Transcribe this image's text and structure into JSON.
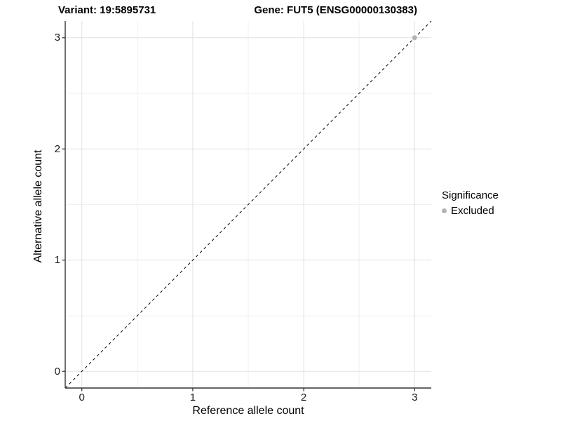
{
  "title": {
    "variant": "Variant: 19:5895731",
    "gene": "Gene: FUT5 (ENSG00000130383)"
  },
  "axes": {
    "x_label": "Reference allele count",
    "y_label": "Alternative allele count"
  },
  "legend": {
    "title": "Significance",
    "items": [
      {
        "label": "Excluded",
        "color": "#b3b3b3"
      }
    ]
  },
  "colors": {
    "background": "#ffffff",
    "grid_major": "#e2e2e2",
    "grid_minor": "#f0f0f0",
    "axis_line": "#333333",
    "tick_mark": "#333333",
    "identity_line": "#000000",
    "point": "#b3b3b3"
  },
  "chart_data": {
    "type": "scatter",
    "title": "Variant: 19:5895731    Gene: FUT5 (ENSG00000130383)",
    "xlabel": "Reference allele count",
    "ylabel": "Alternative allele count",
    "xlim": [
      -0.15,
      3.15
    ],
    "ylim": [
      -0.15,
      3.15
    ],
    "x_ticks": [
      0,
      1,
      2,
      3
    ],
    "y_ticks": [
      0,
      1,
      2,
      3
    ],
    "minor_gridlines": [
      0.5,
      1.5,
      2.5
    ],
    "grid": true,
    "legend_position": "right",
    "series": [
      {
        "name": "Excluded",
        "color": "#b3b3b3",
        "points": [
          {
            "x": 3,
            "y": 3
          }
        ]
      }
    ],
    "reference_line": {
      "kind": "identity",
      "linetype": "dashed",
      "color": "#000000",
      "from": [
        -0.15,
        -0.15
      ],
      "to": [
        3.15,
        3.15
      ]
    }
  }
}
